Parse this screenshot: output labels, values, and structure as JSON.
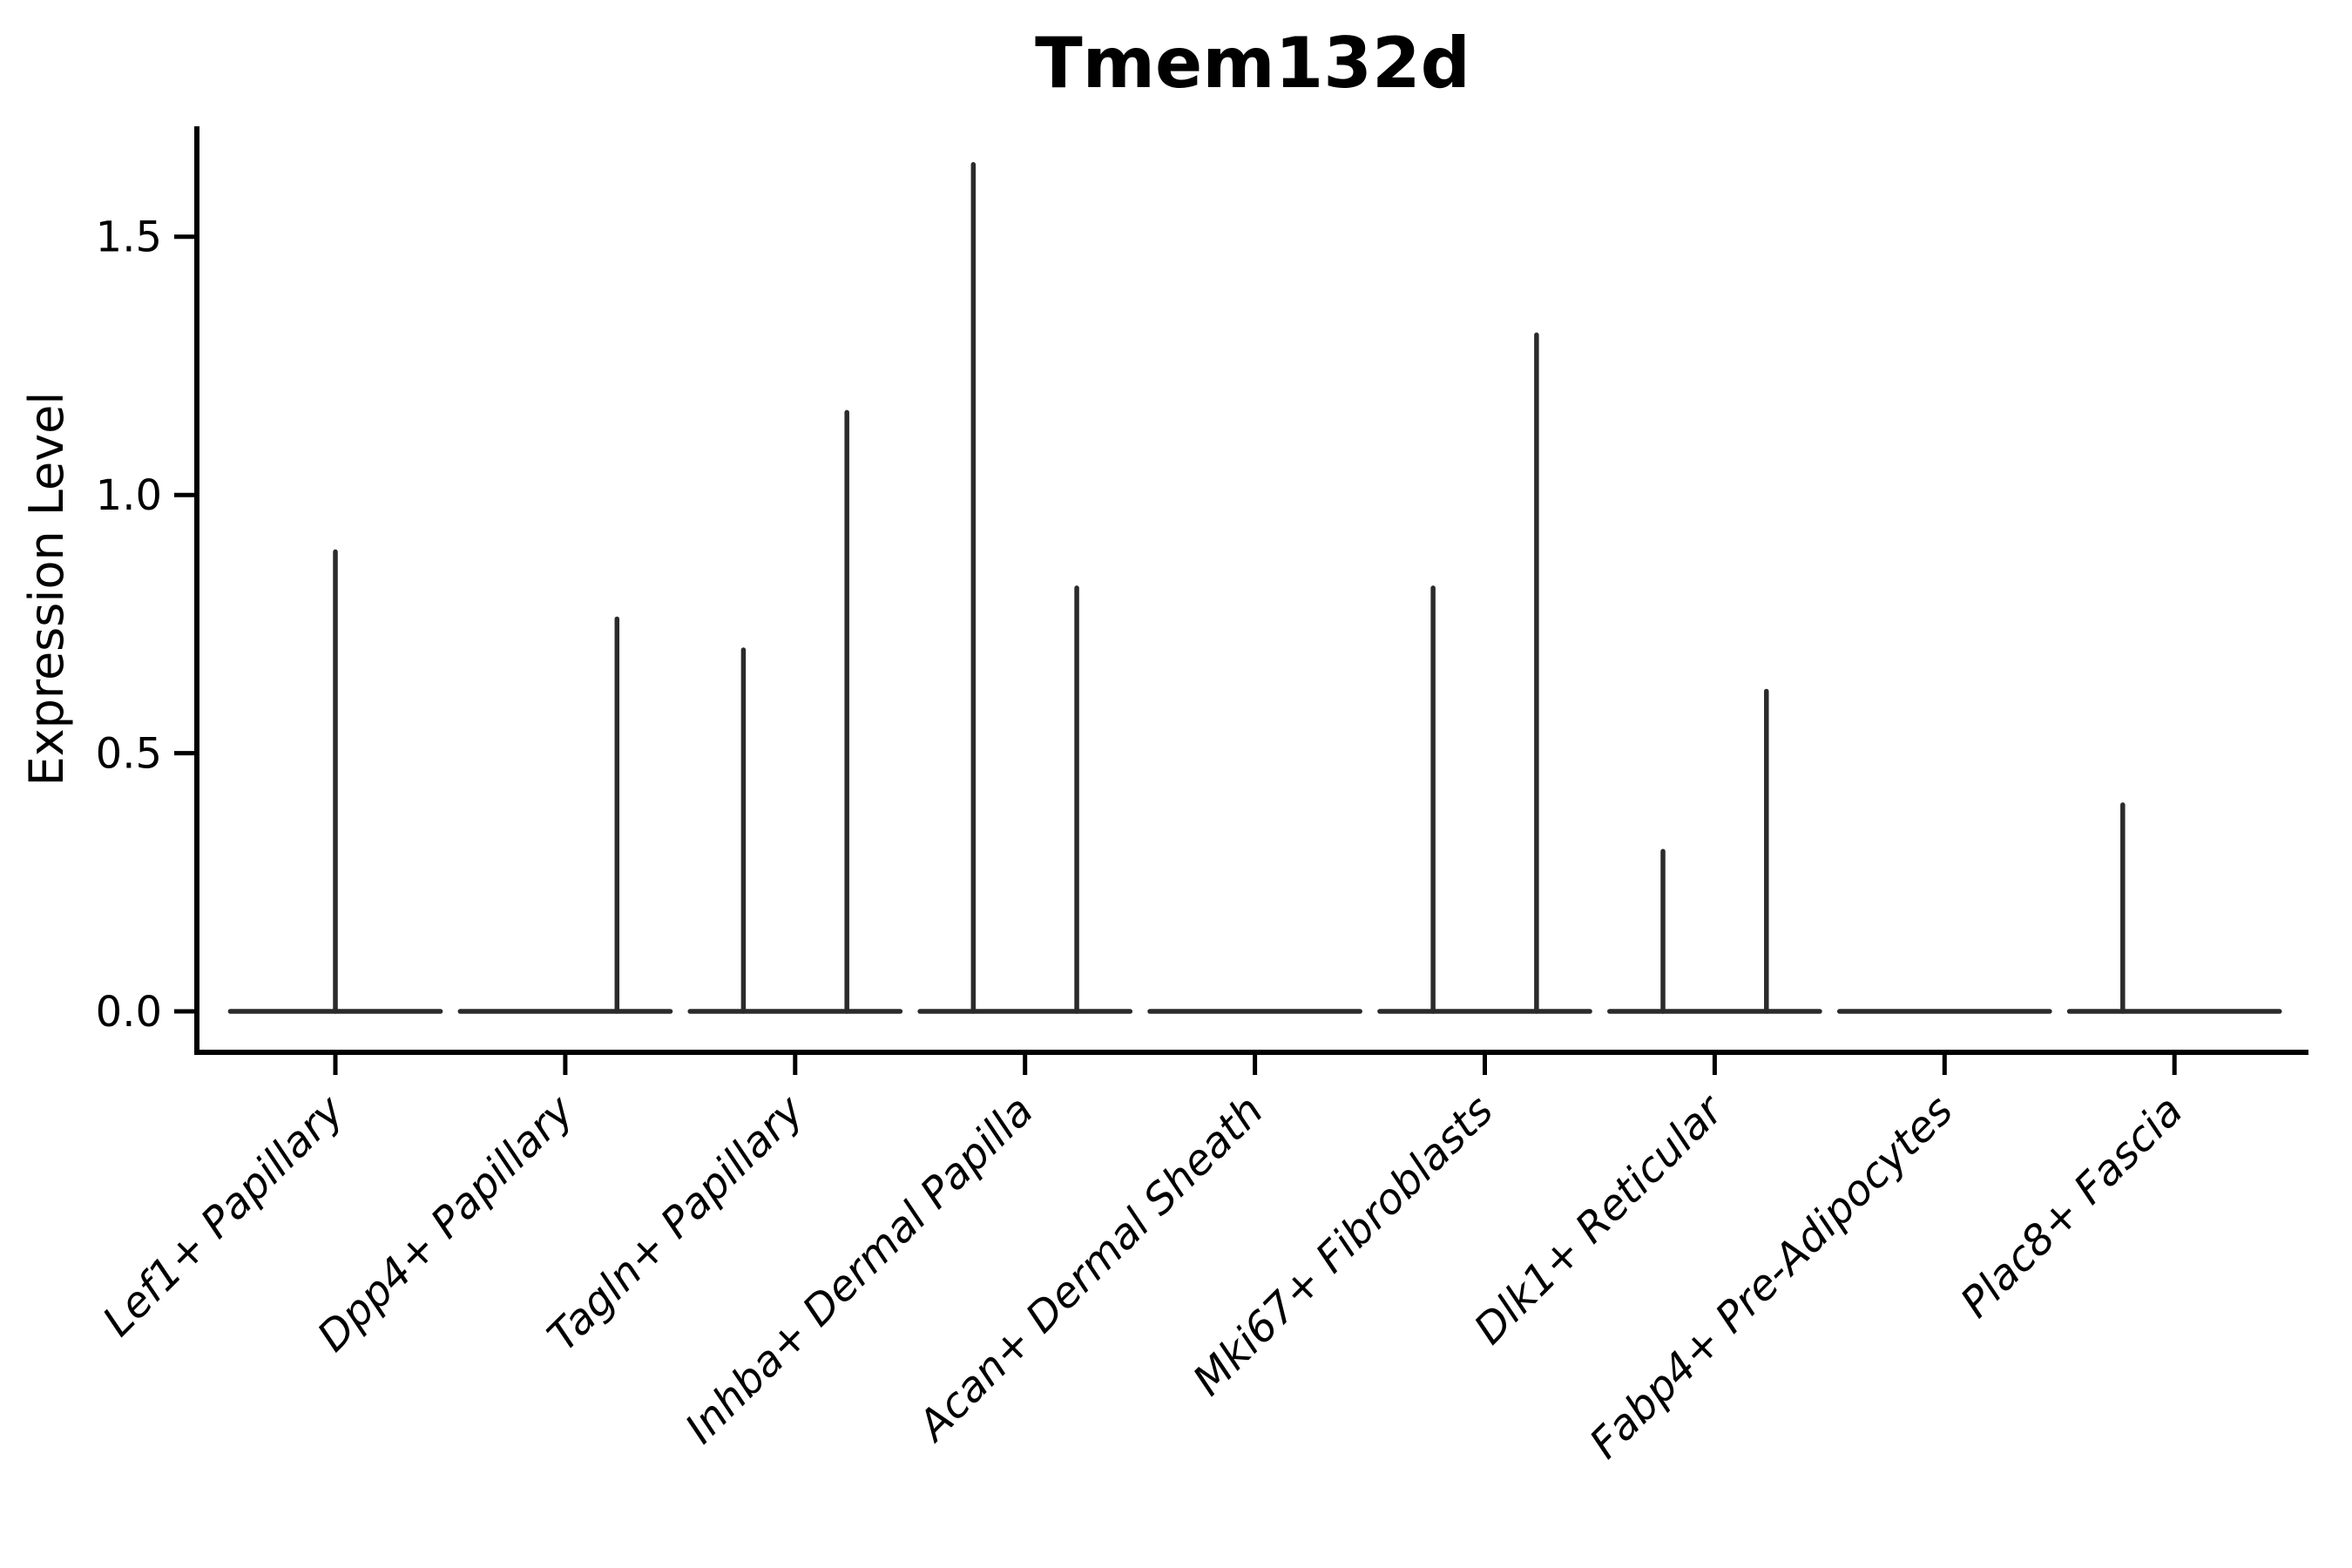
{
  "chart_data": {
    "type": "violin",
    "title": "Tmem132d",
    "ylabel": "Expression Level",
    "xlabel": "",
    "grid": false,
    "legend": "none",
    "ylim": [
      -0.079,
      1.714
    ],
    "yticks": [
      {
        "value": 0.0,
        "label": "0.0"
      },
      {
        "value": 0.5,
        "label": "0.5"
      },
      {
        "value": 1.0,
        "label": "1.0"
      },
      {
        "value": 1.5,
        "label": "1.5"
      }
    ],
    "categories": [
      "Lef1+ Papillary",
      "Dpp4+ Papillary",
      "Tagln+ Papillary",
      "Inhba+ Dermal Papilla",
      "Acan+ Dermal Sheath",
      "Mki67+ Fibroblasts",
      "Dlk1+ Reticular",
      "Fabp4+ Pre-Adipocytes",
      "Plac8+ Fascia"
    ],
    "violins": [
      {
        "category": "Lef1+ Papillary",
        "body_at_zero": true,
        "spikes": [
          {
            "offset": 0.0,
            "max": 0.89
          }
        ]
      },
      {
        "category": "Dpp4+ Papillary",
        "body_at_zero": true,
        "spikes": [
          {
            "offset": 0.225,
            "max": 0.76
          }
        ]
      },
      {
        "category": "Tagln+ Papillary",
        "body_at_zero": true,
        "spikes": [
          {
            "offset": -0.225,
            "max": 0.7
          },
          {
            "offset": 0.225,
            "max": 1.16
          }
        ]
      },
      {
        "category": "Inhba+ Dermal Papilla",
        "body_at_zero": true,
        "spikes": [
          {
            "offset": -0.225,
            "max": 1.64
          },
          {
            "offset": 0.225,
            "max": 0.82
          }
        ]
      },
      {
        "category": "Acan+ Dermal Sheath",
        "body_at_zero": true,
        "spikes": []
      },
      {
        "category": "Mki67+ Fibroblasts",
        "body_at_zero": true,
        "spikes": [
          {
            "offset": -0.225,
            "max": 0.82
          },
          {
            "offset": 0.225,
            "max": 1.31
          }
        ]
      },
      {
        "category": "Dlk1+ Reticular",
        "body_at_zero": true,
        "spikes": [
          {
            "offset": -0.225,
            "max": 0.31
          },
          {
            "offset": 0.225,
            "max": 0.62
          }
        ]
      },
      {
        "category": "Fabp4+ Pre-Adipocytes",
        "body_at_zero": true,
        "spikes": []
      },
      {
        "category": "Plac8+ Fascia",
        "body_at_zero": true,
        "spikes": [
          {
            "offset": -0.225,
            "max": 0.4
          }
        ]
      }
    ],
    "violin_body_halfwidth": 0.457
  },
  "colors": {
    "background": "#ffffff",
    "axis": "#000000",
    "text": "#000000",
    "violin": "#2b2b2b"
  }
}
